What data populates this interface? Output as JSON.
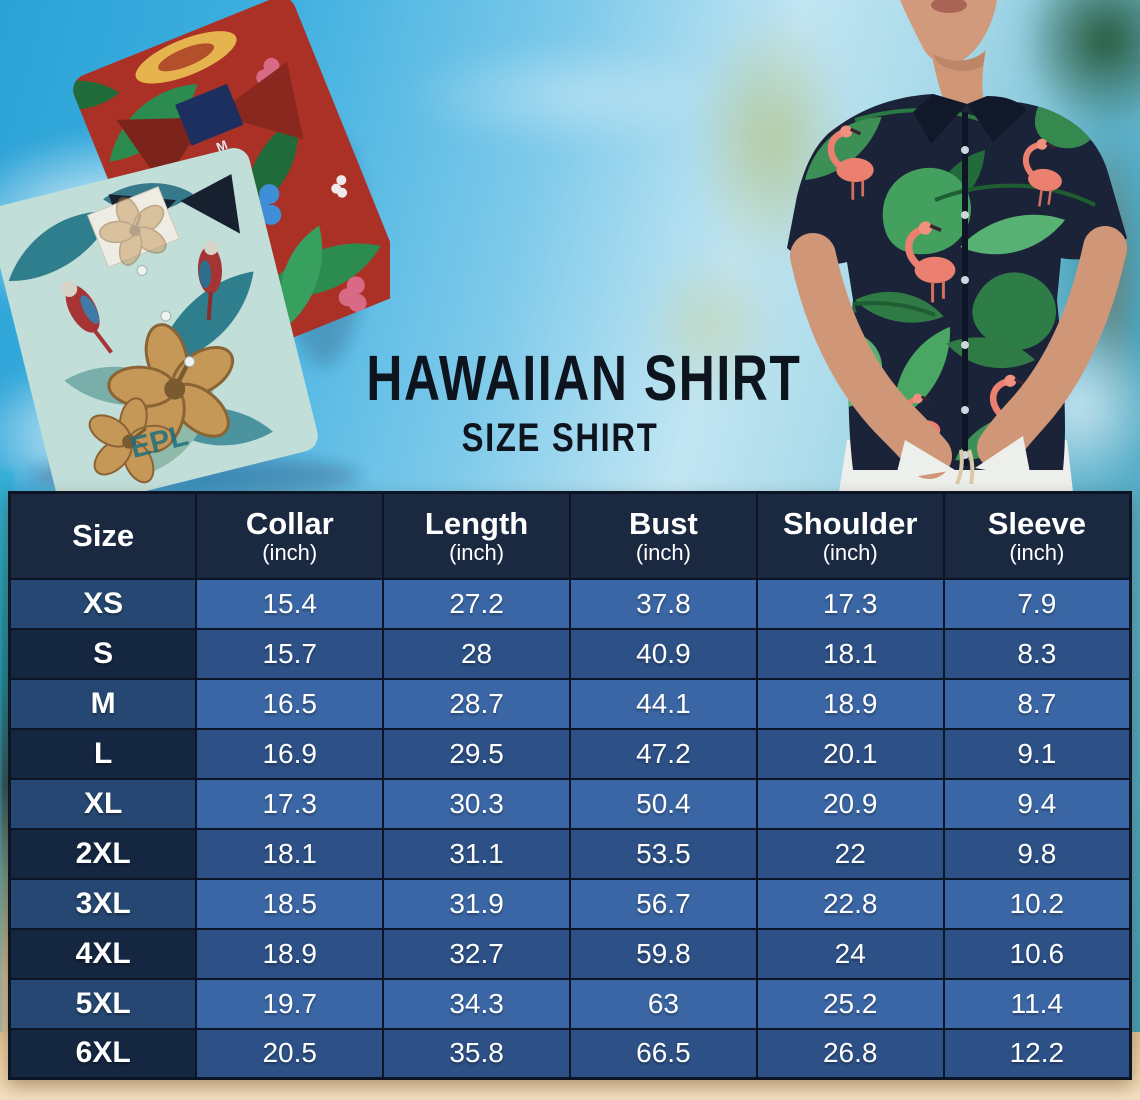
{
  "title": {
    "main": "HAWAIIAN SHIRT",
    "sub": "SIZE SHIRT"
  },
  "hero": {
    "red_shirt_tag": "M",
    "teal_shirt_print_text": "EPL"
  },
  "chart_data": {
    "type": "table",
    "title": "HAWAIIAN SHIRT",
    "subtitle": "SIZE SHIRT",
    "unit": "inch",
    "columns": [
      {
        "label": "Size",
        "unit": ""
      },
      {
        "label": "Collar",
        "unit": "(inch)"
      },
      {
        "label": "Length",
        "unit": "(inch)"
      },
      {
        "label": "Bust",
        "unit": "(inch)"
      },
      {
        "label": "Shoulder",
        "unit": "(inch)"
      },
      {
        "label": "Sleeve",
        "unit": "(inch)"
      }
    ],
    "rows": [
      [
        "XS",
        "15.4",
        "27.2",
        "37.8",
        "17.3",
        "7.9"
      ],
      [
        "S",
        "15.7",
        "28",
        "40.9",
        "18.1",
        "8.3"
      ],
      [
        "M",
        "16.5",
        "28.7",
        "44.1",
        "18.9",
        "8.7"
      ],
      [
        "L",
        "16.9",
        "29.5",
        "47.2",
        "20.1",
        "9.1"
      ],
      [
        "XL",
        "17.3",
        "30.3",
        "50.4",
        "20.9",
        "9.4"
      ],
      [
        "2XL",
        "18.1",
        "31.1",
        "53.5",
        "22",
        "9.8"
      ],
      [
        "3XL",
        "18.5",
        "31.9",
        "56.7",
        "22.8",
        "10.2"
      ],
      [
        "4XL",
        "18.9",
        "32.7",
        "59.8",
        "24",
        "10.6"
      ],
      [
        "5XL",
        "19.7",
        "34.3",
        "63",
        "25.2",
        "11.4"
      ],
      [
        "6XL",
        "20.5",
        "35.8",
        "66.5",
        "26.8",
        "12.2"
      ]
    ]
  },
  "colors": {
    "header_bg": "#1b2940",
    "row_light_data": "#3b66a5",
    "row_light_size": "#254771",
    "row_dark_data": "#2d5187",
    "row_dark_size": "#152640",
    "table_border": "#0c1526",
    "title_text": "#0e141d",
    "sky_blue": "#2aa2d6",
    "sand": "#eed5ae",
    "shirt_navy": "#1b2338",
    "leaf_green": "#3c9055",
    "flamingo_pink": "#ec8070"
  }
}
